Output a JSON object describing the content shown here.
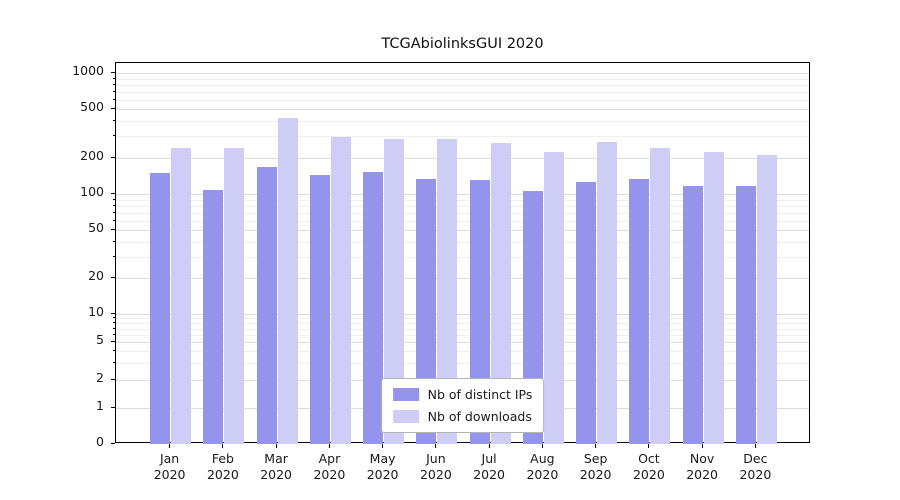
{
  "chart_data": {
    "type": "bar",
    "title": "TCGAbiolinksGUI 2020",
    "xlabel": "",
    "ylabel": "",
    "year": "2020",
    "categories": [
      "Jan",
      "Feb",
      "Mar",
      "Apr",
      "May",
      "Jun",
      "Jul",
      "Aug",
      "Sep",
      "Oct",
      "Nov",
      "Dec"
    ],
    "series": [
      {
        "name": "Nb of distinct IPs",
        "color": "#9494ec",
        "values": [
          148,
          108,
          168,
          143,
          152,
          133,
          130,
          106,
          126,
          133,
          116,
          117
        ]
      },
      {
        "name": "Nb of downloads",
        "color": "#cdcdf6",
        "values": [
          238,
          238,
          425,
          298,
          283,
          283,
          262,
          222,
          268,
          242,
          222,
          212
        ]
      }
    ],
    "y_scale": "log-like (symlog with 0 baseline)",
    "y_ticks": [
      0,
      1,
      2,
      5,
      10,
      20,
      50,
      100,
      200,
      500,
      1000
    ],
    "ylim": [
      0,
      1000
    ],
    "grid": "horizontal",
    "legend_position": "bottom-center-inside",
    "colors": {
      "background": "#ffffff",
      "axis": "#000000",
      "grid_major": "#dcdcdc",
      "grid_minor": "#efefef"
    }
  }
}
